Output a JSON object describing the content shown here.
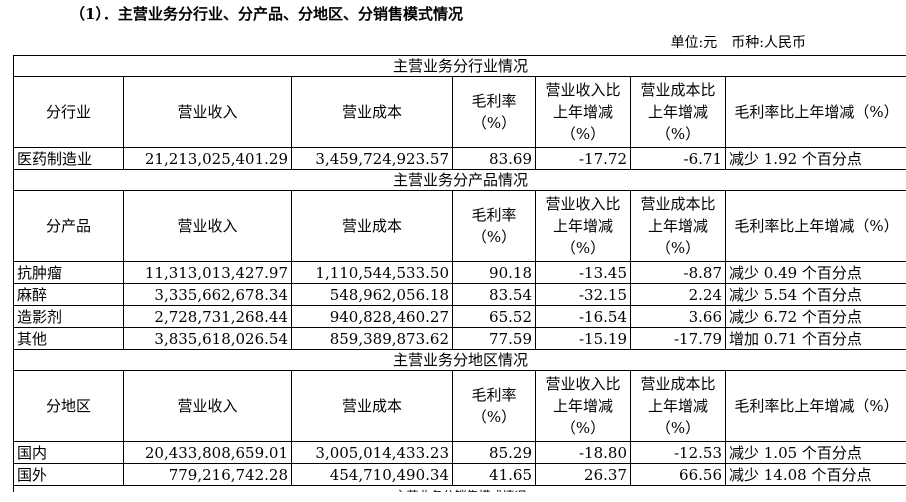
{
  "heading": "（1）．主营业务分行业、分产品、分地区、分销售模式情况",
  "unit": "单位:元　币种:人民币",
  "columns": {
    "revenue": "营业收入",
    "cost": "营业成本",
    "margin": "毛利率（%）",
    "revenue_change": "营业收入比上年增减（%）",
    "cost_change": "营业成本比上年增减（%）",
    "margin_change": "毛利率比上年增减（%）"
  },
  "sections": [
    {
      "title": "主营业务分行业情况",
      "first_col": "分行业",
      "rows": [
        {
          "name": "医药制造业",
          "revenue": "21,213,025,401.29",
          "cost": "3,459,724,923.57",
          "margin": "83.69",
          "revenue_change": "-17.72",
          "cost_change": "-6.71",
          "margin_change": "减少 1.92 个百分点"
        }
      ]
    },
    {
      "title": "主营业务分产品情况",
      "first_col": "分产品",
      "rows": [
        {
          "name": "抗肿瘤",
          "revenue": "11,313,013,427.97",
          "cost": "1,110,544,533.50",
          "margin": "90.18",
          "revenue_change": "-13.45",
          "cost_change": "-8.87",
          "margin_change": "减少 0.49 个百分点"
        },
        {
          "name": "麻醉",
          "revenue": "3,335,662,678.34",
          "cost": "548,962,056.18",
          "margin": "83.54",
          "revenue_change": "-32.15",
          "cost_change": "2.24",
          "margin_change": "减少 5.54 个百分点"
        },
        {
          "name": "造影剂",
          "revenue": "2,728,731,268.44",
          "cost": "940,828,460.27",
          "margin": "65.52",
          "revenue_change": "-16.54",
          "cost_change": "3.66",
          "margin_change": "减少 6.72 个百分点"
        },
        {
          "name": "其他",
          "revenue": "3,835,618,026.54",
          "cost": "859,389,873.62",
          "margin": "77.59",
          "revenue_change": "-15.19",
          "cost_change": "-17.79",
          "margin_change": "增加 0.71 个百分点"
        }
      ]
    },
    {
      "title": "主营业务分地区情况",
      "first_col": "分地区",
      "rows": [
        {
          "name": "国内",
          "revenue": "20,433,808,659.01",
          "cost": "3,005,014,433.23",
          "margin": "85.29",
          "revenue_change": "-18.80",
          "cost_change": "-12.53",
          "margin_change": "减少 1.05 个百分点"
        },
        {
          "name": "国外",
          "revenue": "779,216,742.28",
          "cost": "454,710,490.34",
          "margin": "41.65",
          "revenue_change": "26.37",
          "cost_change": "66.56",
          "margin_change": "减少 14.08 个百分点"
        }
      ]
    }
  ],
  "next_section_title": "主营业务分销售模式情况"
}
